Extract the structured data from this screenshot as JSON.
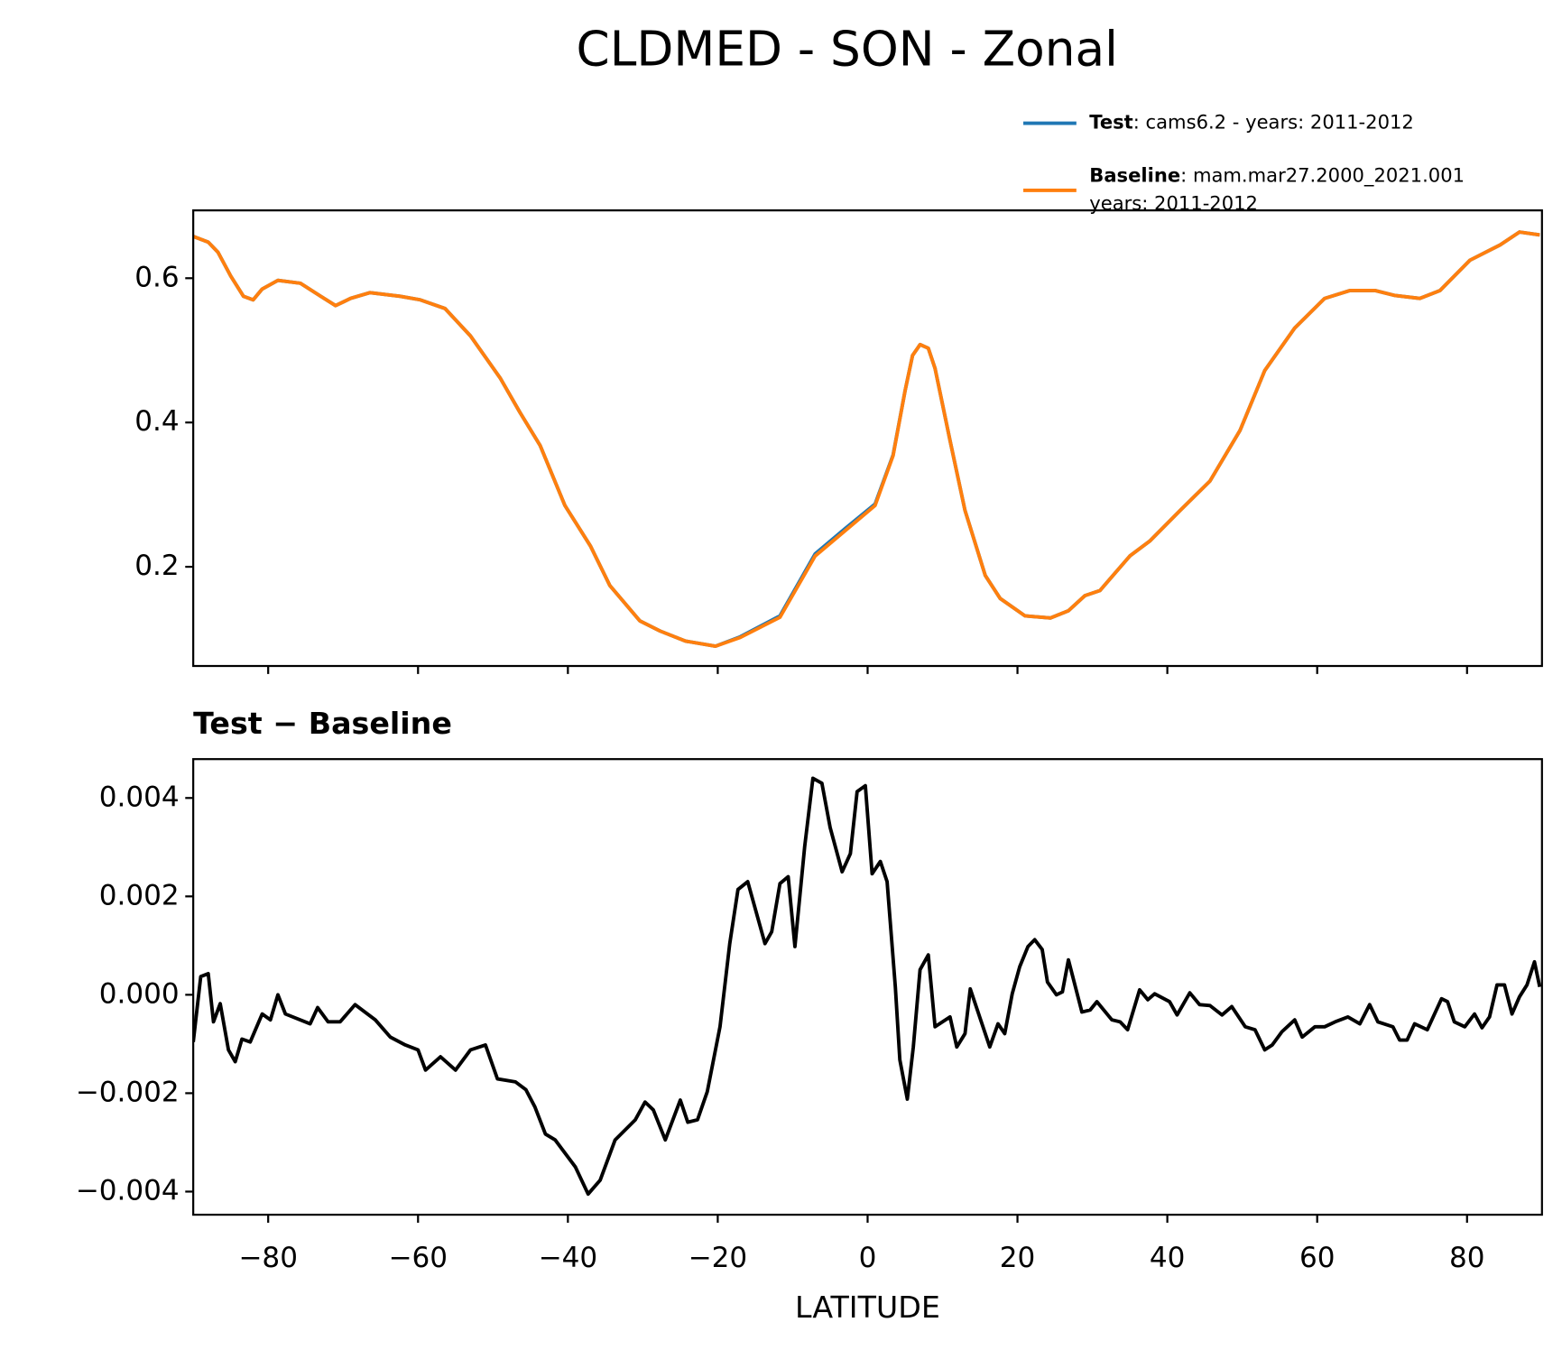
{
  "title": "CLDMED - SON - Zonal",
  "chart_data": [
    {
      "type": "line",
      "x": [
        -90,
        -88,
        -86.7,
        -85,
        -83.3,
        -82,
        -80.8,
        -78.7,
        -75.7,
        -73,
        -71,
        -69,
        -66.4,
        -62.4,
        -59.7,
        -56.4,
        -53,
        -49,
        -46.4,
        -43.7,
        -40.4,
        -37,
        -34.4,
        -30.4,
        -27.7,
        -24.3,
        -20.3,
        -17,
        -11.7,
        -7,
        -3,
        1,
        3.4,
        5,
        6,
        7,
        8.1,
        9,
        11,
        13,
        15.7,
        17.7,
        21,
        24.4,
        26.8,
        29,
        31,
        35,
        37.7,
        41.7,
        45.7,
        49.7,
        53,
        57,
        61,
        64.4,
        67.7,
        70.4,
        73.7,
        76.4,
        80.4,
        84.4,
        87,
        89.7
      ],
      "series": [
        {
          "name": "Test",
          "description": [
            ": cams6.2 - years: 2011-2012"
          ],
          "color": "#1f77b4",
          "values": [
            0.658,
            0.65,
            0.636,
            0.603,
            0.575,
            0.57,
            0.585,
            0.597,
            0.593,
            0.575,
            0.562,
            0.572,
            0.58,
            0.575,
            0.57,
            0.558,
            0.52,
            0.461,
            0.414,
            0.368,
            0.285,
            0.229,
            0.174,
            0.125,
            0.111,
            0.097,
            0.09,
            0.103,
            0.132,
            0.218,
            0.253,
            0.287,
            0.355,
            0.444,
            0.493,
            0.508,
            0.503,
            0.475,
            0.375,
            0.278,
            0.188,
            0.156,
            0.132,
            0.129,
            0.139,
            0.16,
            0.167,
            0.215,
            0.236,
            0.278,
            0.319,
            0.389,
            0.472,
            0.531,
            0.572,
            0.583,
            0.583,
            0.576,
            0.572,
            0.583,
            0.625,
            0.646,
            0.664,
            0.66
          ]
        },
        {
          "name": "Baseline",
          "description": [
            ": mam.mar27.2000_2021.001",
            "years: 2011-2012"
          ],
          "color": "#ff7f0e",
          "values": [
            0.658,
            0.65,
            0.636,
            0.603,
            0.575,
            0.57,
            0.585,
            0.597,
            0.593,
            0.575,
            0.562,
            0.572,
            0.58,
            0.575,
            0.57,
            0.558,
            0.52,
            0.461,
            0.414,
            0.368,
            0.285,
            0.229,
            0.174,
            0.125,
            0.111,
            0.097,
            0.09,
            0.102,
            0.13,
            0.215,
            0.25,
            0.285,
            0.354,
            0.444,
            0.493,
            0.508,
            0.503,
            0.475,
            0.375,
            0.278,
            0.188,
            0.156,
            0.132,
            0.129,
            0.139,
            0.16,
            0.167,
            0.215,
            0.236,
            0.278,
            0.319,
            0.389,
            0.472,
            0.531,
            0.572,
            0.583,
            0.583,
            0.576,
            0.572,
            0.583,
            0.625,
            0.646,
            0.664,
            0.66
          ]
        }
      ],
      "xlim": [
        -90,
        90
      ],
      "ylim": [
        0.0625,
        0.694
      ],
      "xticks": [
        -80,
        -60,
        -40,
        -20,
        0,
        20,
        40,
        60,
        80
      ],
      "xtick_labels": false,
      "yticks": [
        0.2,
        0.4,
        0.6
      ],
      "legend": "upper right"
    },
    {
      "type": "line",
      "title": "Test − Baseline",
      "xlabel": "LATITUDE",
      "x": [
        -90,
        -89,
        -88,
        -87.3,
        -86.4,
        -85.3,
        -84.4,
        -83.5,
        -82.4,
        -80.8,
        -79.7,
        -78.7,
        -77.7,
        -74.4,
        -73.4,
        -72,
        -70.4,
        -68.4,
        -65.7,
        -63.7,
        -61.7,
        -60,
        -59,
        -57,
        -55,
        -53,
        -51,
        -49.4,
        -47,
        -45.6,
        -44.4,
        -43,
        -41.7,
        -39,
        -37.3,
        -35.7,
        -33.7,
        -31,
        -29.7,
        -28.6,
        -27,
        -25,
        -24,
        -22.7,
        -21.4,
        -19.7,
        -18.4,
        -17.3,
        -16,
        -13.7,
        -12.8,
        -11.7,
        -10.6,
        -9.7,
        -8.4,
        -7.3,
        -6.1,
        -5,
        -3.4,
        -2.3,
        -1.4,
        -0.3,
        0.6,
        1.7,
        2.6,
        3.7,
        4.3,
        5.3,
        6.1,
        7,
        8.1,
        9,
        11,
        11.9,
        13,
        13.7,
        16.3,
        17.4,
        18.3,
        19.3,
        20.3,
        21.4,
        22.3,
        23.3,
        24,
        25.2,
        26,
        26.8,
        28.6,
        29.7,
        30.6,
        32.6,
        33.7,
        34.7,
        36.3,
        37.4,
        38.3,
        40.3,
        41.3,
        43,
        44.3,
        45.7,
        47.3,
        48.6,
        50.4,
        51.7,
        53,
        54,
        55.3,
        57,
        58,
        59.7,
        61,
        62.4,
        64.1,
        65.7,
        67,
        68.1,
        70.1,
        71,
        72,
        73,
        74.7,
        76.6,
        77.4,
        78.3,
        79.7,
        81,
        82,
        83,
        84,
        85,
        86,
        87,
        88,
        89,
        89.7
      ],
      "series": [
        {
          "color": "#000000",
          "values": [
            -0.00096,
            0.00037,
            0.00043,
            -0.00055,
            -0.00018,
            -0.00112,
            -0.00136,
            -0.0009,
            -0.00096,
            -0.00039,
            -0.00051,
            0,
            -0.00039,
            -0.00059,
            -0.00026,
            -0.00055,
            -0.00055,
            -0.0002,
            -0.00051,
            -0.00086,
            -0.00102,
            -0.00112,
            -0.00153,
            -0.00126,
            -0.00153,
            -0.00112,
            -0.00102,
            -0.00171,
            -0.00177,
            -0.00193,
            -0.00228,
            -0.00283,
            -0.00295,
            -0.0035,
            -0.00405,
            -0.00377,
            -0.00295,
            -0.00254,
            -0.00218,
            -0.00234,
            -0.00295,
            -0.00214,
            -0.00259,
            -0.00254,
            -0.00197,
            -0.00065,
            0.00104,
            0.00214,
            0.0023,
            0.00104,
            0.00128,
            0.00226,
            0.0024,
            0.00098,
            0.00301,
            0.0044,
            0.0043,
            0.0034,
            0.0025,
            0.00287,
            0.00413,
            0.00425,
            0.00246,
            0.00271,
            0.0023,
            0.00016,
            -0.00132,
            -0.00212,
            -0.00106,
            0.00051,
            0.00081,
            -0.00065,
            -0.00045,
            -0.00106,
            -0.00079,
            0.00012,
            -0.00106,
            -0.00059,
            -0.00079,
            2e-05,
            0.00057,
            0.00098,
            0.00112,
            0.00092,
            0.00026,
            0,
            6e-05,
            0.00071,
            -0.00035,
            -0.00031,
            -0.00014,
            -0.00051,
            -0.00055,
            -0.00071,
            0.0001,
            -0.0001,
            2e-05,
            -0.00014,
            -0.00041,
            4e-05,
            -0.0002,
            -0.00022,
            -0.00041,
            -0.00024,
            -0.00065,
            -0.00071,
            -0.00112,
            -0.00102,
            -0.00075,
            -0.00051,
            -0.00086,
            -0.00065,
            -0.00065,
            -0.00055,
            -0.00045,
            -0.00059,
            -0.0002,
            -0.00055,
            -0.00065,
            -0.00092,
            -0.00092,
            -0.00059,
            -0.00071,
            -8e-05,
            -0.00014,
            -0.00055,
            -0.00065,
            -0.00039,
            -0.00067,
            -0.00045,
            0.0002,
            0.0002,
            -0.00039,
            -4e-05,
            0.0002,
            0.00067,
            0.00016
          ]
        }
      ],
      "xlim": [
        -90,
        90
      ],
      "ylim": [
        -0.00447,
        0.00479
      ],
      "xticks": [
        {
          "value": -80,
          "label": "−80"
        },
        {
          "value": -60,
          "label": "−60"
        },
        {
          "value": -40,
          "label": "−40"
        },
        {
          "value": -20,
          "label": "−20"
        },
        0,
        20,
        40,
        60,
        80
      ],
      "yticks": [
        {
          "value": -0.004,
          "label": "−0.004"
        },
        {
          "value": -0.002,
          "label": "−0.002"
        },
        {
          "value": 0,
          "label": "0.000"
        },
        0.002,
        0.004
      ]
    }
  ]
}
